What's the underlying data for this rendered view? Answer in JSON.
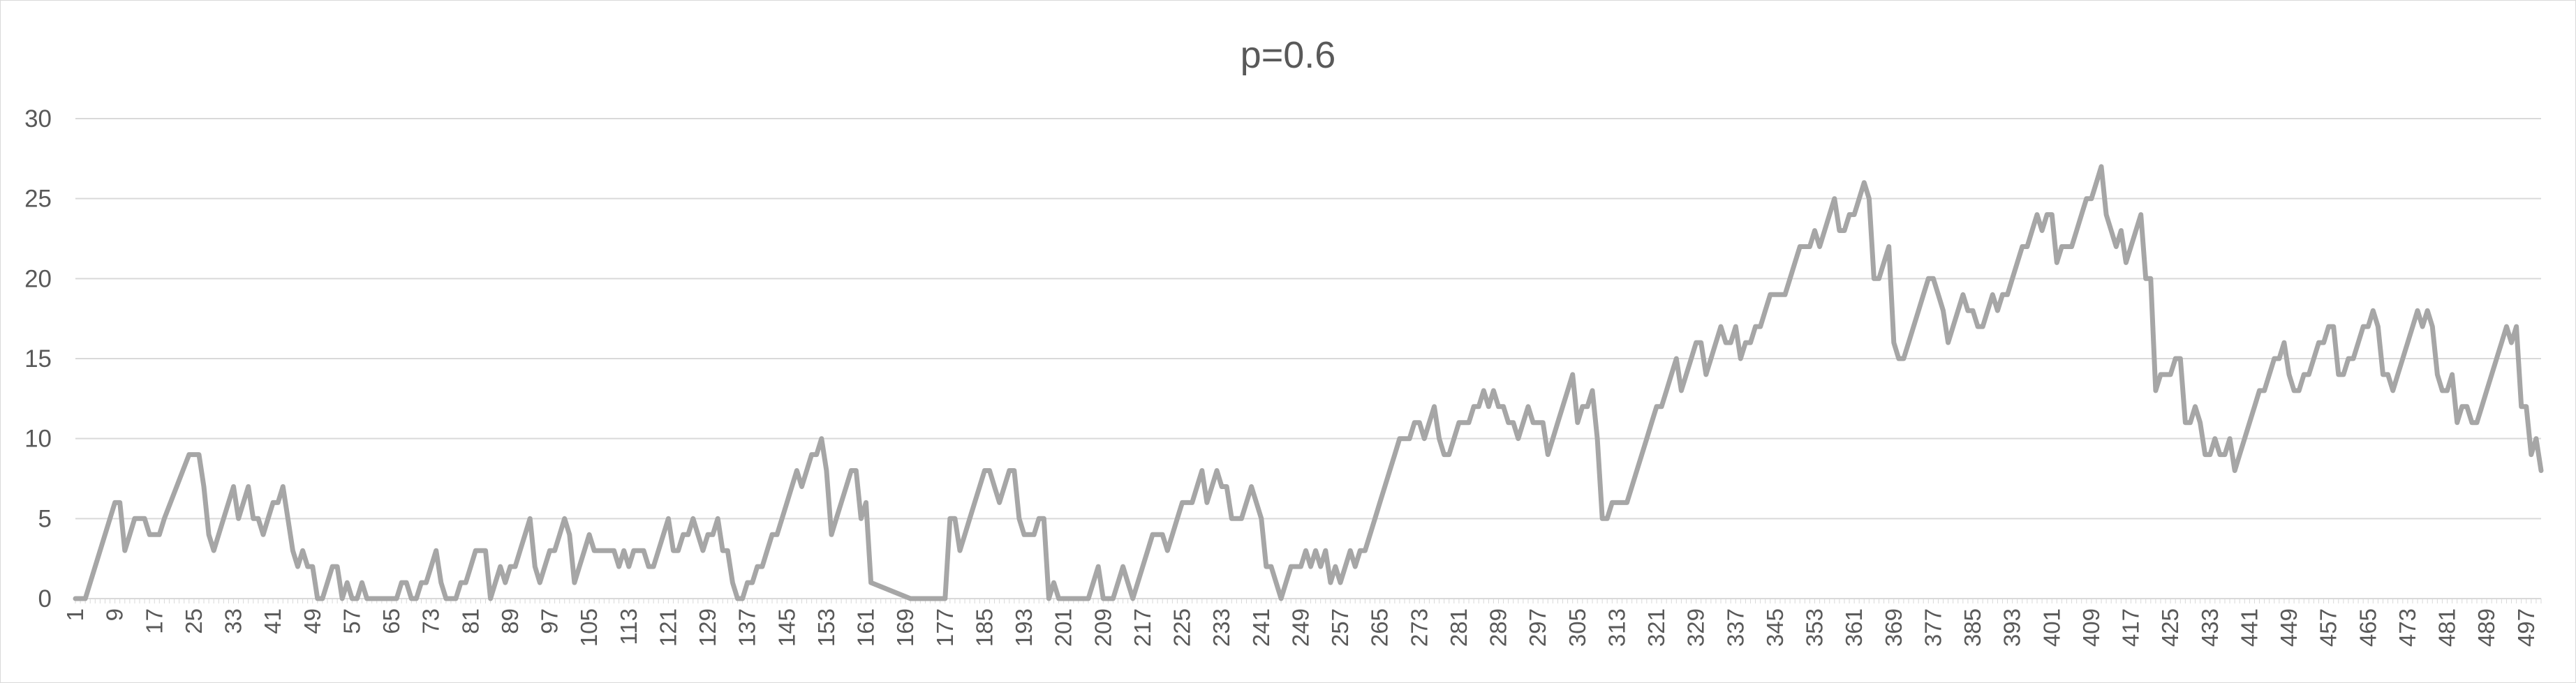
{
  "chart_data": {
    "type": "line",
    "title": "p=0.6",
    "xlabel": "",
    "ylabel": "",
    "xlim": [
      1,
      500
    ],
    "ylim": [
      0,
      30
    ],
    "yticks": [
      0,
      5,
      10,
      15,
      20,
      25,
      30
    ],
    "xticks": [
      1,
      9,
      17,
      25,
      33,
      41,
      49,
      57,
      65,
      73,
      81,
      89,
      97,
      105,
      113,
      121,
      129,
      137,
      145,
      153,
      161,
      169,
      177,
      185,
      193,
      201,
      209,
      217,
      225,
      233,
      241,
      249,
      257,
      265,
      273,
      281,
      289,
      297,
      305,
      313,
      321,
      329,
      337,
      345,
      353,
      361,
      369,
      377,
      385,
      393,
      401,
      409,
      417,
      425,
      433,
      441,
      449,
      457,
      465,
      473,
      481,
      489,
      497
    ],
    "grid": true,
    "legend": "none",
    "line_color": "#a6a6a6",
    "series": [
      {
        "x": [
          1,
          3,
          9,
          10,
          11,
          12,
          13,
          14,
          15,
          16,
          17,
          18,
          19,
          24,
          25,
          26,
          27,
          28,
          29,
          31,
          33,
          34,
          35,
          36,
          37,
          38,
          39,
          40,
          41,
          42,
          43,
          44,
          45,
          46,
          47,
          48,
          49,
          50,
          51,
          52,
          53,
          54,
          55,
          56,
          57,
          58,
          59,
          60,
          61,
          62,
          63,
          64,
          65,
          66,
          67,
          68,
          69,
          70,
          71,
          72,
          73,
          74,
          75,
          76,
          77,
          78,
          79,
          80,
          81,
          82,
          83,
          84,
          85,
          86,
          87,
          88,
          89,
          90,
          91,
          92,
          93,
          94,
          95,
          96,
          97,
          98,
          99,
          100,
          101,
          102,
          103,
          104,
          105,
          106,
          107,
          108,
          109,
          110,
          111,
          112,
          113,
          114,
          115,
          116,
          117,
          118,
          119,
          120,
          121,
          122,
          123,
          124,
          125,
          126,
          127,
          128,
          129,
          130,
          131,
          132,
          133,
          134,
          135,
          136,
          137,
          138,
          139,
          140,
          141,
          142,
          143,
          144,
          145,
          146,
          147,
          148,
          149,
          150,
          151,
          152,
          153,
          154,
          155,
          156,
          157,
          158,
          159,
          160,
          161,
          162,
          170,
          176,
          177,
          178,
          179,
          180,
          181,
          182,
          183,
          184,
          185,
          186,
          187,
          188,
          189,
          190,
          191,
          192,
          193,
          194,
          195,
          196,
          197,
          198,
          199,
          200,
          201,
          202,
          203,
          204,
          205,
          206,
          207,
          208,
          209,
          210,
          211,
          212,
          213,
          214,
          215,
          216,
          217,
          218,
          219,
          220,
          221,
          222,
          223,
          224,
          225,
          226,
          227,
          228,
          229,
          230,
          231,
          232,
          233,
          234,
          235,
          236,
          237,
          238,
          239,
          240,
          241,
          242,
          243,
          244,
          245,
          246,
          247,
          248,
          249,
          250,
          251,
          252,
          253,
          254,
          255,
          256,
          257,
          258,
          259,
          260,
          261,
          262,
          263,
          264,
          265,
          266,
          267,
          268,
          269,
          270,
          271,
          272,
          273,
          274,
          275,
          276,
          277,
          278,
          279,
          280,
          281,
          282,
          283,
          284,
          285,
          286,
          287,
          288,
          289,
          290,
          291,
          292,
          293,
          294,
          295,
          296,
          297,
          298,
          299,
          300,
          301,
          302,
          303,
          304,
          305,
          306,
          307,
          308,
          309,
          310,
          311,
          312,
          313,
          314,
          315,
          316,
          317,
          318,
          319,
          320,
          321,
          322,
          323,
          324,
          325,
          326,
          327,
          328,
          329,
          330,
          331,
          332,
          333,
          334,
          335,
          336,
          337,
          338,
          339,
          340,
          341,
          342,
          343,
          344,
          345,
          346,
          347,
          348,
          349,
          350,
          351,
          352,
          353,
          354,
          355,
          356,
          357,
          358,
          359,
          360,
          361,
          362,
          363,
          364,
          365,
          366,
          367,
          368,
          369,
          370,
          371,
          372,
          373,
          374,
          375,
          376,
          377,
          378,
          379,
          380,
          381,
          382,
          383,
          384,
          385,
          386,
          387,
          388,
          389,
          390,
          391,
          392,
          393,
          394,
          395,
          396,
          397,
          398,
          399,
          400,
          401,
          402,
          403,
          404,
          405,
          406,
          407,
          408,
          409,
          410,
          411,
          412,
          413,
          414,
          415,
          416,
          417,
          418,
          419,
          420,
          421,
          422,
          423,
          424,
          425,
          426,
          427,
          428,
          429,
          430,
          431,
          432,
          433,
          434,
          435,
          436,
          437,
          438,
          439,
          440,
          441,
          442,
          443,
          444,
          445,
          446,
          447,
          448,
          449,
          450,
          451,
          452,
          453,
          454,
          455,
          456,
          457,
          458,
          459,
          460,
          461,
          462,
          463,
          464,
          465,
          466,
          467,
          468,
          469,
          470,
          471,
          472,
          473,
          474,
          475,
          476,
          477,
          478,
          479,
          480,
          481,
          482,
          483,
          484,
          485,
          486,
          487,
          488,
          489,
          490,
          491,
          492,
          493,
          494,
          495,
          496,
          497,
          498,
          499,
          500
        ],
        "y": [
          0,
          0,
          6,
          6,
          3,
          4,
          5,
          5,
          5,
          4,
          4,
          4,
          5,
          9,
          9,
          9,
          7,
          4,
          3,
          5,
          7,
          5,
          6,
          7,
          5,
          5,
          4,
          5,
          6,
          6,
          7,
          5,
          3,
          2,
          3,
          2,
          2,
          0,
          0,
          1,
          2,
          2,
          0,
          1,
          0,
          0,
          1,
          0,
          0,
          0,
          0,
          0,
          0,
          0,
          1,
          1,
          0,
          0,
          1,
          1,
          2,
          3,
          1,
          0,
          0,
          0,
          1,
          1,
          2,
          3,
          3,
          3,
          0,
          1,
          2,
          1,
          2,
          2,
          3,
          4,
          5,
          2,
          1,
          2,
          3,
          3,
          4,
          5,
          4,
          1,
          2,
          3,
          4,
          3,
          3,
          3,
          3,
          3,
          2,
          3,
          2,
          3,
          3,
          3,
          2,
          2,
          3,
          4,
          5,
          3,
          3,
          4,
          4,
          5,
          4,
          3,
          4,
          4,
          5,
          3,
          3,
          1,
          0,
          0,
          1,
          1,
          2,
          2,
          3,
          4,
          4,
          5,
          6,
          7,
          8,
          7,
          8,
          9,
          9,
          10,
          8,
          4,
          5,
          6,
          7,
          8,
          8,
          5,
          6,
          1,
          0,
          0,
          0,
          5,
          5,
          3,
          4,
          5,
          6,
          7,
          8,
          8,
          7,
          6,
          7,
          8,
          8,
          5,
          4,
          4,
          4,
          5,
          5,
          0,
          1,
          0,
          0,
          0,
          0,
          0,
          0,
          0,
          1,
          2,
          0,
          0,
          0,
          1,
          2,
          1,
          0,
          1,
          2,
          3,
          4,
          4,
          4,
          3,
          4,
          5,
          6,
          6,
          6,
          7,
          8,
          6,
          7,
          8,
          7,
          7,
          5,
          5,
          5,
          6,
          7,
          6,
          5,
          2,
          2,
          1,
          0,
          1,
          2,
          2,
          2,
          3,
          2,
          3,
          2,
          3,
          1,
          2,
          1,
          2,
          3,
          2,
          3,
          3,
          4,
          5,
          6,
          7,
          8,
          9,
          10,
          10,
          10,
          11,
          11,
          10,
          11,
          12,
          10,
          9,
          9,
          10,
          11,
          11,
          11,
          12,
          12,
          13,
          12,
          13,
          12,
          12,
          11,
          11,
          10,
          11,
          12,
          11,
          11,
          11,
          9,
          10,
          11,
          12,
          13,
          14,
          11,
          12,
          12,
          13,
          10,
          5,
          5,
          6,
          6,
          6,
          6,
          7,
          8,
          9,
          10,
          11,
          12,
          12,
          13,
          14,
          15,
          13,
          14,
          15,
          16,
          16,
          14,
          15,
          16,
          17,
          16,
          16,
          17,
          15,
          16,
          16,
          17,
          17,
          18,
          19,
          19,
          19,
          19,
          20,
          21,
          22,
          22,
          22,
          23,
          22,
          23,
          24,
          25,
          23,
          23,
          24,
          24,
          25,
          26,
          25,
          20,
          20,
          21,
          22,
          16,
          15,
          15,
          16,
          17,
          18,
          19,
          20,
          20,
          19,
          18,
          16,
          17,
          18,
          19,
          18,
          18,
          17,
          17,
          18,
          19,
          18,
          19,
          19,
          20,
          21,
          22,
          22,
          23,
          24,
          23,
          24,
          24,
          21,
          22,
          22,
          22,
          23,
          24,
          25,
          25,
          26,
          27,
          24,
          23,
          22,
          23,
          21,
          22,
          23,
          24,
          20,
          20,
          13,
          14,
          14,
          14,
          15,
          15,
          11,
          11,
          12,
          11,
          9,
          9,
          10,
          9,
          9,
          10,
          8,
          9,
          10,
          11,
          12,
          13,
          13,
          14,
          15,
          15,
          16,
          14,
          13,
          13,
          14,
          14,
          15,
          16,
          16,
          17,
          17,
          14,
          14,
          15,
          15,
          16,
          17,
          17,
          18,
          17,
          14,
          14,
          13,
          14,
          15,
          16,
          17,
          18,
          17,
          18,
          17,
          14,
          13,
          13,
          14,
          11,
          12,
          12,
          11,
          11,
          12,
          13,
          14,
          15,
          16,
          17,
          16,
          17,
          12,
          12,
          9,
          10,
          8
        ]
      }
    ]
  }
}
